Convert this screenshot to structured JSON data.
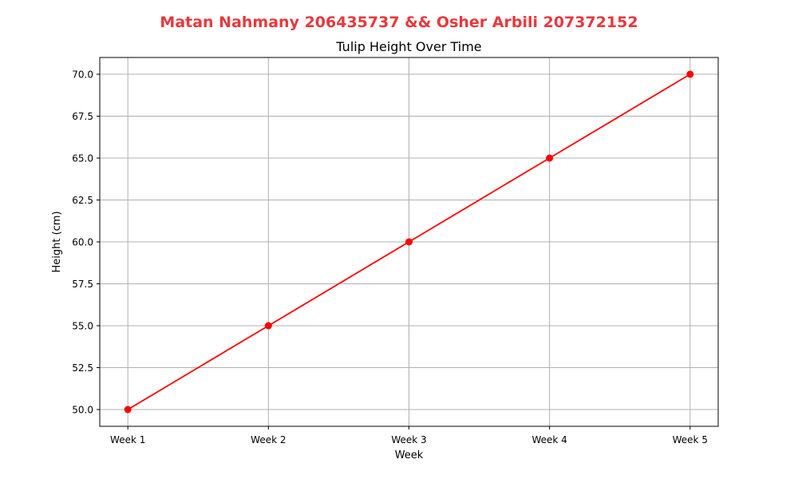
{
  "suptitle": "Matan Nahmany 206435737 && Osher Arbili 207372152",
  "suptitle_color": "#e8383d",
  "chart_data": {
    "type": "line",
    "title": "Tulip Height Over Time",
    "xlabel": "Week",
    "ylabel": "Height (cm)",
    "categories": [
      "Week 1",
      "Week 2",
      "Week 3",
      "Week 4",
      "Week 5"
    ],
    "series": [
      {
        "values": [
          50.0,
          55.0,
          60.0,
          65.0,
          70.0
        ],
        "color": "#ff0000",
        "marker": "circle"
      }
    ],
    "ylim": [
      49.0,
      71.0
    ],
    "yticks": [
      50.0,
      52.5,
      55.0,
      57.5,
      60.0,
      62.5,
      65.0,
      67.5,
      70.0
    ],
    "ytick_labels": [
      "50.0",
      "52.5",
      "55.0",
      "57.5",
      "60.0",
      "62.5",
      "65.0",
      "67.5",
      "70.0"
    ],
    "grid": true,
    "legend": false
  }
}
